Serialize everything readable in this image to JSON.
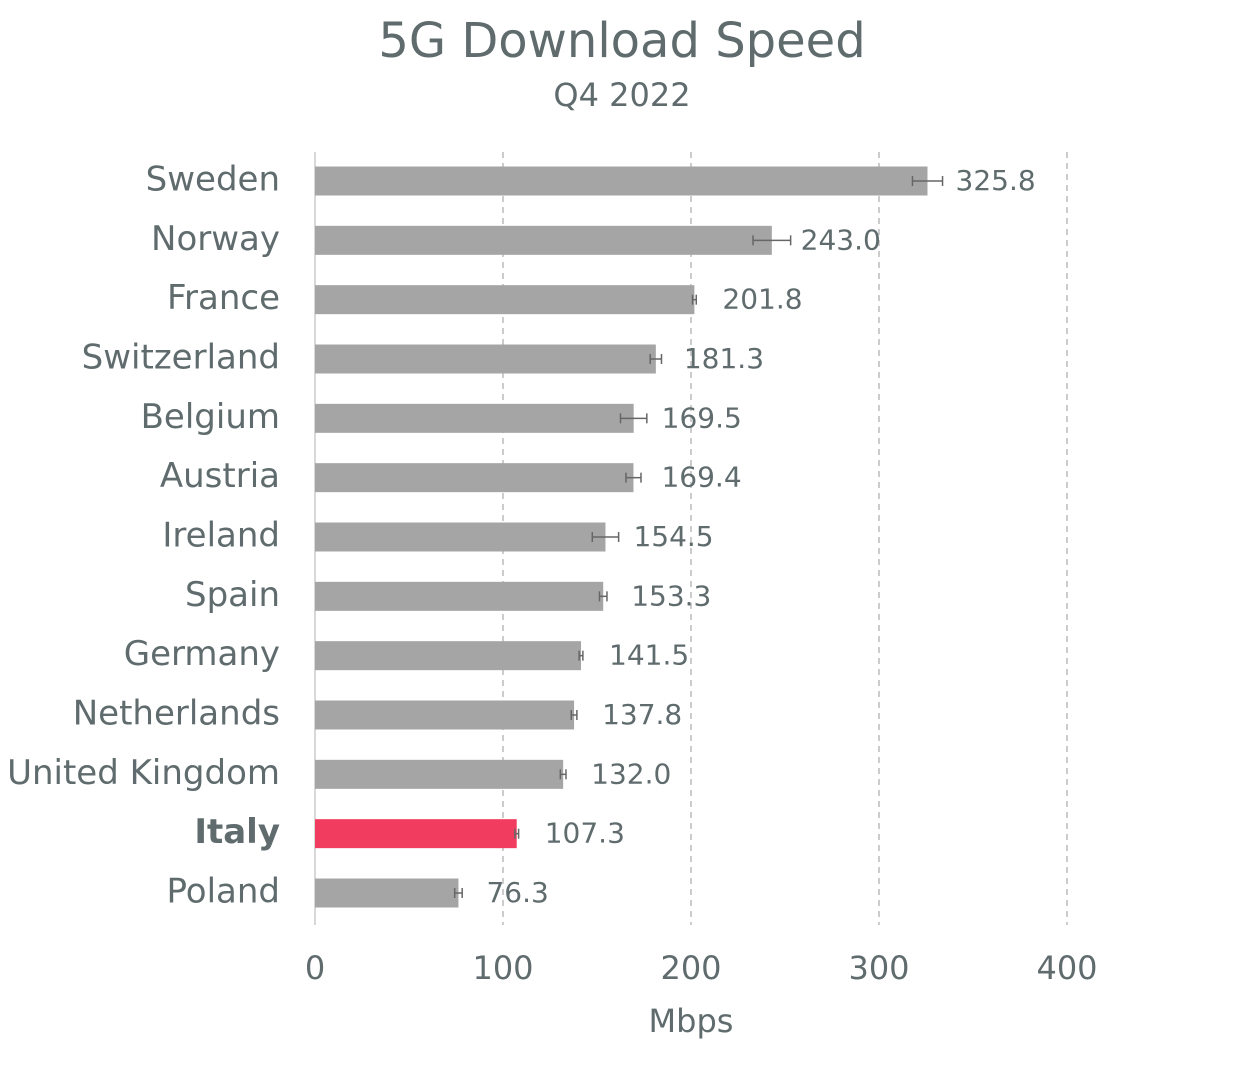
{
  "chart_data": {
    "type": "hbar",
    "title": "5G Download Speed",
    "subtitle": "Q4 2022",
    "categories": [
      "Sweden",
      "Norway",
      "France",
      "Switzerland",
      "Belgium",
      "Austria",
      "Ireland",
      "Spain",
      "Germany",
      "Netherlands",
      "United Kingdom",
      "Italy",
      "Poland"
    ],
    "values": [
      325.8,
      243,
      201.8,
      181.3,
      169.5,
      169.4,
      154.5,
      153.3,
      141.5,
      137.8,
      132,
      107.3,
      76.3
    ],
    "value_labels": [
      "325.8",
      "243.0",
      "201.8",
      "181.3",
      "169.5",
      "169.4",
      "154.5",
      "153.3",
      "141.5",
      "137.8",
      "132.0",
      "107.3",
      "76.3"
    ],
    "errors": [
      8,
      10,
      1,
      3,
      7,
      4,
      7,
      2,
      1,
      1.5,
      1.5,
      1,
      2
    ],
    "color": "#a5a5a5",
    "highlight": 11,
    "highlight_color": "#f23c5f",
    "xlabel": "Mbps",
    "xlim": [
      0,
      400
    ],
    "xticks": [
      0,
      100,
      200,
      300,
      400
    ],
    "grid": true
  }
}
